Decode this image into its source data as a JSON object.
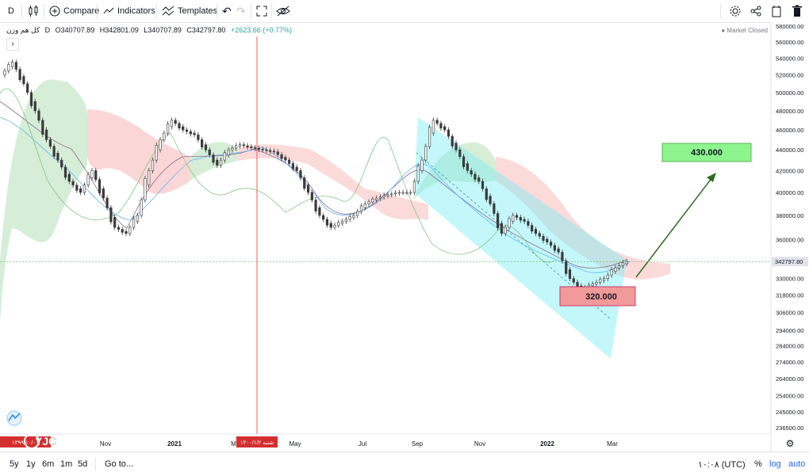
{
  "toolbar": {
    "interval": "D",
    "compare_label": "Compare",
    "indicators_label": "Indicators",
    "templates_label": "Templates"
  },
  "legend": {
    "symbol": "کل هم وزن",
    "interval": "D",
    "open": "O340707.89",
    "high": "H342801.09",
    "low": "L340707.89",
    "close": "C342797.80",
    "change": "+2623.66 (+0.77%)"
  },
  "market_status": "Market Closed",
  "watermark": "YJC",
  "annotations": {
    "target_label": "430.000",
    "support_label": "320.000",
    "target_color": "#8ef58e",
    "support_color": "#f29a9a"
  },
  "cursor_date_label": "۱۴۰۰/۱/۲ شنبه",
  "left_date_label": "۱۳۹۹/۱۰/۰۱",
  "bottom": {
    "ranges": [
      "5y",
      "1y",
      "6m",
      "1m",
      "5d"
    ],
    "goto": "Go to...",
    "time": "۱۰:۰۸ (UTC)",
    "pct": "%",
    "log": "log",
    "auto": "auto"
  },
  "chart_data": {
    "type": "candlestick",
    "y_axis_labels": [
      "580000.00",
      "560000.00",
      "540000.00",
      "520000.00",
      "500000.00",
      "480000.00",
      "460000.00",
      "440000.00",
      "420000.00",
      "400000.00",
      "380000.00",
      "360000.00",
      "342797.80",
      "330000.00",
      "318000.00",
      "306000.00",
      "294000.00",
      "284000.00",
      "274000.00",
      "264000.00",
      "254000.00",
      "245000.00",
      "236500.00"
    ],
    "x_axis_labels": [
      "Nov",
      "2021",
      "Mar",
      "May",
      "Jul",
      "Sep",
      "Nov",
      "2022",
      "Mar"
    ],
    "last_price": 342797.8,
    "last_price_label": "342797.80",
    "close_series": [
      520000,
      535000,
      510000,
      480000,
      450000,
      430000,
      410000,
      400000,
      420000,
      395000,
      370000,
      365000,
      380000,
      420000,
      450000,
      470000,
      460000,
      455000,
      440000,
      425000,
      440000,
      445000,
      442000,
      440000,
      438000,
      430000,
      420000,
      400000,
      380000,
      370000,
      375000,
      380000,
      390000,
      395000,
      398000,
      400000,
      400000,
      430000,
      470000,
      460000,
      440000,
      420000,
      410000,
      390000,
      365000,
      380000,
      375000,
      365000,
      358000,
      350000,
      330000,
      322000,
      326000,
      330000,
      338000,
      342797
    ],
    "colors": {
      "up": "#26a69a",
      "down": "#ef5350",
      "candle": "#3a3a3a",
      "cloud_bull": "#a5d6a7",
      "cloud_bear": "#f8bbbb",
      "channel": "#7dedf2",
      "arrow": "#2e6b1f"
    }
  }
}
